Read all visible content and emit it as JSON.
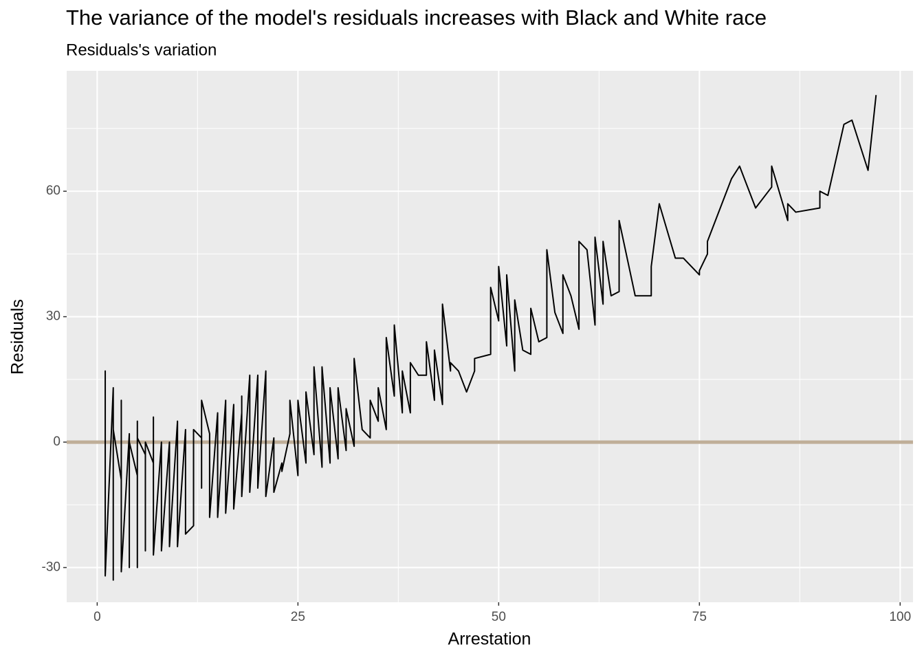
{
  "chart_data": {
    "type": "line",
    "title": "The variance of the model's residuals increases with Black and White race",
    "subtitle": "Residuals's variation",
    "xlabel": "Arrestation",
    "ylabel": "Residuals",
    "x": [
      1,
      1,
      1,
      2,
      2,
      2,
      2,
      3,
      3,
      3,
      4,
      4,
      4,
      5,
      5,
      5,
      5,
      6,
      6,
      6,
      7,
      7,
      7,
      8,
      8,
      9,
      9,
      10,
      10,
      11,
      11,
      12,
      12,
      13,
      13,
      13,
      14,
      14,
      15,
      15,
      16,
      16,
      17,
      17,
      18,
      18,
      18,
      19,
      19,
      20,
      20,
      20,
      21,
      21,
      22,
      22,
      23,
      23,
      24,
      24,
      25,
      25,
      26,
      26,
      27,
      27,
      28,
      28,
      29,
      29,
      30,
      30,
      31,
      31,
      32,
      32,
      33,
      34,
      34,
      35,
      35,
      36,
      36,
      37,
      37,
      38,
      38,
      39,
      39,
      40,
      41,
      41,
      42,
      42,
      43,
      43,
      44,
      44,
      45,
      46,
      47,
      47,
      49,
      49,
      50,
      50,
      51,
      51,
      52,
      52,
      53,
      54,
      54,
      55,
      56,
      56,
      57,
      58,
      58,
      59,
      60,
      60,
      61,
      62,
      62,
      63,
      63,
      64,
      65,
      65,
      67,
      69,
      69,
      70,
      72,
      73,
      75,
      75,
      76,
      76,
      79,
      80,
      82,
      84,
      84,
      86,
      86,
      87,
      90,
      90,
      91,
      93,
      94,
      96,
      97
    ],
    "values": [
      5,
      17,
      -32,
      13,
      -33,
      10,
      3,
      -9,
      10,
      -31,
      2,
      -30,
      0,
      -8,
      5,
      -30,
      1,
      -3,
      -26,
      0,
      -5,
      6,
      -27,
      0,
      -26,
      0,
      -25,
      5,
      -25,
      3,
      -22,
      -20,
      3,
      1,
      -11,
      10,
      2,
      -18,
      7,
      -18,
      10,
      -17,
      9,
      -16,
      7,
      11,
      -13,
      16,
      -12,
      16,
      8,
      -11,
      17,
      -13,
      1,
      -12,
      -5,
      -7,
      2,
      10,
      -8,
      10,
      -5,
      12,
      -3,
      18,
      -6,
      18,
      -5,
      13,
      -4,
      13,
      -2,
      8,
      -1,
      20,
      3,
      1,
      10,
      5,
      13,
      3,
      25,
      11,
      28,
      7,
      17,
      7,
      19,
      16,
      16,
      24,
      10,
      22,
      9,
      33,
      17,
      19,
      17,
      12,
      17,
      20,
      21,
      37,
      29,
      42,
      23,
      40,
      17,
      34,
      22,
      21,
      32,
      24,
      25,
      46,
      31,
      26,
      40,
      35,
      27,
      48,
      46,
      28,
      49,
      33,
      48,
      35,
      36,
      53,
      35,
      35,
      42,
      57,
      44,
      44,
      40,
      41,
      45,
      48,
      63,
      66,
      56,
      61,
      66,
      53,
      57,
      55,
      56,
      60,
      59,
      76,
      77,
      65,
      83
    ],
    "color": "#000000",
    "hline": 0,
    "hline_color": "#bfae98",
    "xlim": [
      -3.8,
      101.6
    ],
    "xticks": [
      0,
      25,
      50,
      75,
      100
    ],
    "ylim": [
      -38.3,
      88.8
    ],
    "yticks": [
      -30,
      0,
      30,
      60
    ],
    "grid": true
  }
}
